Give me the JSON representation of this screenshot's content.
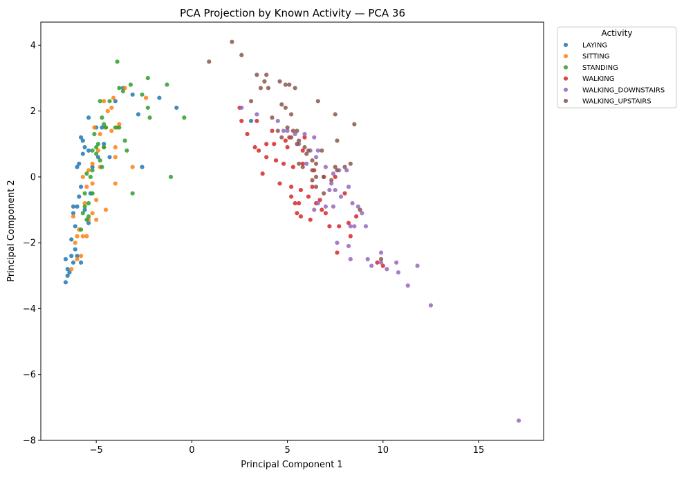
{
  "chart_data": {
    "type": "scatter",
    "title": "PCA Projection by Known Activity — PCA 36",
    "xlabel": "Principal Component 1",
    "ylabel": "Principal Component 2",
    "xlim": [
      -7.9,
      18.4
    ],
    "ylim": [
      -8,
      4.7
    ],
    "xticks": [
      -5,
      0,
      5,
      10,
      15
    ],
    "yticks": [
      -8,
      -6,
      -4,
      -2,
      0,
      2,
      4
    ],
    "tick_labels_x": [
      "−5",
      "0",
      "5",
      "10",
      "15"
    ],
    "tick_labels_y": [
      "−8",
      "−6",
      "−4",
      "−2",
      "0",
      "2",
      "4"
    ],
    "grid": false,
    "legend": {
      "title": "Activity",
      "placement": "outside-top-right"
    },
    "series": [
      {
        "name": "LAYING",
        "color": "#1f77b4",
        "points": [
          [
            -6.6,
            -3.2
          ],
          [
            -6.5,
            -3.0
          ],
          [
            -6.5,
            -2.8
          ],
          [
            -6.4,
            -2.9
          ],
          [
            -6.6,
            -2.5
          ],
          [
            -6.3,
            -2.4
          ],
          [
            -6.2,
            -2.6
          ],
          [
            -6.1,
            -2.2
          ],
          [
            -5.8,
            -2.6
          ],
          [
            -6.0,
            -2.4
          ],
          [
            -6.3,
            -1.9
          ],
          [
            -6.1,
            -1.5
          ],
          [
            -6.2,
            -1.1
          ],
          [
            -6.0,
            -0.9
          ],
          [
            -6.2,
            -0.9
          ],
          [
            -5.9,
            -0.6
          ],
          [
            -5.8,
            -0.3
          ],
          [
            -6.0,
            0.3
          ],
          [
            -5.9,
            0.4
          ],
          [
            -5.7,
            0.7
          ],
          [
            -5.6,
            0.9
          ],
          [
            -5.4,
            0.8
          ],
          [
            -5.7,
            1.1
          ],
          [
            -5.8,
            1.2
          ],
          [
            -5.4,
            1.8
          ],
          [
            -5.0,
            1.5
          ],
          [
            -4.7,
            1.5
          ],
          [
            -4.6,
            1.0
          ],
          [
            -4.3,
            0.6
          ],
          [
            -4.0,
            2.3
          ],
          [
            -3.6,
            2.7
          ],
          [
            -3.1,
            2.5
          ],
          [
            -2.8,
            1.9
          ],
          [
            -1.7,
            2.4
          ],
          [
            -0.8,
            2.1
          ],
          [
            -2.6,
            0.3
          ],
          [
            -5.4,
            -1.4
          ],
          [
            -5.2,
            0.3
          ],
          [
            -4.9,
            0.6
          ],
          [
            3.1,
            1.7
          ],
          [
            -5.6,
            -1.0
          ],
          [
            -5.3,
            -0.5
          ]
        ]
      },
      {
        "name": "SITTING",
        "color": "#ff7f0e",
        "points": [
          [
            -6.3,
            -2.8
          ],
          [
            -6.0,
            -2.5
          ],
          [
            -6.1,
            -2.0
          ],
          [
            -6.0,
            -1.8
          ],
          [
            -5.9,
            -1.6
          ],
          [
            -5.7,
            -1.8
          ],
          [
            -5.5,
            -1.8
          ],
          [
            -5.4,
            -1.3
          ],
          [
            -5.2,
            -1.1
          ],
          [
            -5.0,
            -1.3
          ],
          [
            -5.6,
            -0.8
          ],
          [
            -5.5,
            -0.3
          ],
          [
            -5.2,
            -0.2
          ],
          [
            -5.7,
            0.0
          ],
          [
            -5.4,
            0.2
          ],
          [
            -5.2,
            0.4
          ],
          [
            -5.0,
            -0.7
          ],
          [
            -4.8,
            0.3
          ],
          [
            -4.5,
            -1.0
          ],
          [
            -4.0,
            -0.2
          ],
          [
            -4.9,
            0.8
          ],
          [
            -4.6,
            0.9
          ],
          [
            -4.0,
            0.9
          ],
          [
            -4.8,
            1.3
          ],
          [
            -5.1,
            1.5
          ],
          [
            -4.5,
            1.5
          ],
          [
            -4.2,
            1.4
          ],
          [
            -3.9,
            1.5
          ],
          [
            -3.8,
            1.6
          ],
          [
            -4.4,
            2.0
          ],
          [
            -4.2,
            2.1
          ],
          [
            -4.6,
            2.3
          ],
          [
            -4.1,
            2.4
          ],
          [
            -3.5,
            2.7
          ],
          [
            -2.4,
            2.4
          ],
          [
            -3.1,
            0.3
          ],
          [
            -4.0,
            0.6
          ],
          [
            -5.8,
            -2.4
          ],
          [
            -6.2,
            -1.2
          ]
        ]
      },
      {
        "name": "STANDING",
        "color": "#2ca02c",
        "points": [
          [
            -5.8,
            -1.6
          ],
          [
            -5.5,
            -1.3
          ],
          [
            -5.6,
            -0.9
          ],
          [
            -5.4,
            -0.8
          ],
          [
            -5.2,
            -0.5
          ],
          [
            -5.6,
            -0.5
          ],
          [
            -5.5,
            0.1
          ],
          [
            -5.3,
            0.0
          ],
          [
            -5.2,
            0.2
          ],
          [
            -5.0,
            0.7
          ],
          [
            -5.2,
            0.8
          ],
          [
            -5.0,
            0.9
          ],
          [
            -4.8,
            0.5
          ],
          [
            -4.7,
            0.3
          ],
          [
            -4.9,
            1.0
          ],
          [
            -4.6,
            0.9
          ],
          [
            -4.5,
            1.5
          ],
          [
            -4.6,
            1.6
          ],
          [
            -4.7,
            1.8
          ],
          [
            -4.8,
            2.3
          ],
          [
            -4.3,
            2.3
          ],
          [
            -4.0,
            1.5
          ],
          [
            -3.8,
            1.5
          ],
          [
            -3.5,
            1.1
          ],
          [
            -3.4,
            0.8
          ],
          [
            -3.8,
            2.7
          ],
          [
            -3.6,
            2.6
          ],
          [
            -3.2,
            2.8
          ],
          [
            -2.6,
            2.5
          ],
          [
            -2.3,
            2.1
          ],
          [
            -2.2,
            1.8
          ],
          [
            -2.3,
            3.0
          ],
          [
            -1.3,
            2.8
          ],
          [
            -0.4,
            1.8
          ],
          [
            -3.9,
            3.5
          ],
          [
            -3.1,
            -0.5
          ],
          [
            -1.1,
            0.0
          ],
          [
            -5.1,
            1.3
          ],
          [
            -5.4,
            -1.2
          ],
          [
            -5.7,
            -1.1
          ]
        ]
      },
      {
        "name": "WALKING",
        "color": "#d62728",
        "points": [
          [
            2.5,
            2.1
          ],
          [
            2.6,
            1.7
          ],
          [
            2.9,
            1.3
          ],
          [
            3.4,
            1.7
          ],
          [
            3.5,
            0.8
          ],
          [
            3.7,
            0.1
          ],
          [
            3.9,
            0.6
          ],
          [
            3.9,
            1.0
          ],
          [
            4.3,
            1.0
          ],
          [
            4.4,
            0.5
          ],
          [
            4.6,
            -0.2
          ],
          [
            4.8,
            0.4
          ],
          [
            4.9,
            1.1
          ],
          [
            5.0,
            0.9
          ],
          [
            5.1,
            1.2
          ],
          [
            5.2,
            -0.3
          ],
          [
            5.3,
            0.3
          ],
          [
            5.2,
            -0.6
          ],
          [
            5.4,
            -0.8
          ],
          [
            5.5,
            -1.1
          ],
          [
            5.6,
            -0.8
          ],
          [
            5.7,
            -1.2
          ],
          [
            5.8,
            0.4
          ],
          [
            5.7,
            -0.4
          ],
          [
            5.8,
            0.8
          ],
          [
            5.9,
            1.2
          ],
          [
            6.1,
            -0.6
          ],
          [
            6.2,
            -1.3
          ],
          [
            6.3,
            -0.3
          ],
          [
            6.4,
            0.2
          ],
          [
            6.5,
            -0.8
          ],
          [
            6.7,
            -0.7
          ],
          [
            6.8,
            -1.0
          ],
          [
            7.0,
            -1.1
          ],
          [
            7.2,
            -1.5
          ],
          [
            7.5,
            0.0
          ],
          [
            7.7,
            -1.5
          ],
          [
            7.6,
            -2.3
          ],
          [
            8.0,
            -0.5
          ],
          [
            8.2,
            -1.4
          ],
          [
            8.3,
            -1.8
          ],
          [
            8.6,
            -1.2
          ],
          [
            9.7,
            -2.6
          ],
          [
            10.0,
            -2.7
          ],
          [
            6.9,
            0.0
          ],
          [
            4.2,
            1.4
          ],
          [
            3.3,
            0.9
          ]
        ]
      },
      {
        "name": "WALKING_DOWNSTAIRS",
        "color": "#9467bd",
        "points": [
          [
            2.6,
            2.1
          ],
          [
            3.4,
            1.9
          ],
          [
            4.5,
            1.7
          ],
          [
            4.8,
            1.4
          ],
          [
            5.0,
            1.4
          ],
          [
            5.4,
            1.3
          ],
          [
            5.6,
            1.0
          ],
          [
            5.9,
            1.3
          ],
          [
            6.4,
            1.2
          ],
          [
            6.6,
            0.8
          ],
          [
            6.0,
            0.4
          ],
          [
            6.2,
            0.8
          ],
          [
            6.5,
            0.6
          ],
          [
            7.0,
            0.3
          ],
          [
            7.4,
            0.1
          ],
          [
            7.7,
            0.2
          ],
          [
            8.1,
            0.2
          ],
          [
            7.3,
            -0.2
          ],
          [
            7.5,
            -0.4
          ],
          [
            7.8,
            -0.6
          ],
          [
            8.2,
            -0.3
          ],
          [
            8.4,
            -0.8
          ],
          [
            8.7,
            -0.9
          ],
          [
            8.9,
            -1.1
          ],
          [
            7.4,
            -0.9
          ],
          [
            7.0,
            -0.9
          ],
          [
            6.6,
            -0.8
          ],
          [
            6.4,
            -1.0
          ],
          [
            8.3,
            -1.5
          ],
          [
            8.5,
            -1.5
          ],
          [
            9.1,
            -1.5
          ],
          [
            7.6,
            -2.0
          ],
          [
            8.2,
            -2.1
          ],
          [
            7.2,
            -0.4
          ],
          [
            9.2,
            -2.5
          ],
          [
            9.9,
            -2.3
          ],
          [
            9.9,
            -2.6
          ],
          [
            10.2,
            -2.8
          ],
          [
            10.7,
            -2.6
          ],
          [
            10.8,
            -2.9
          ],
          [
            11.3,
            -3.3
          ],
          [
            11.8,
            -2.7
          ],
          [
            12.5,
            -3.9
          ],
          [
            17.1,
            -7.4
          ],
          [
            8.3,
            -2.5
          ],
          [
            9.4,
            -2.7
          ]
        ]
      },
      {
        "name": "WALKING_UPSTAIRS",
        "color": "#8c564b",
        "points": [
          [
            2.1,
            4.1
          ],
          [
            2.6,
            3.7
          ],
          [
            0.9,
            3.5
          ],
          [
            3.1,
            2.3
          ],
          [
            3.4,
            3.1
          ],
          [
            3.6,
            2.7
          ],
          [
            3.8,
            2.9
          ],
          [
            3.9,
            3.1
          ],
          [
            4.0,
            2.7
          ],
          [
            4.6,
            2.9
          ],
          [
            4.9,
            2.8
          ],
          [
            5.1,
            2.8
          ],
          [
            5.4,
            2.7
          ],
          [
            4.7,
            2.2
          ],
          [
            4.9,
            2.1
          ],
          [
            5.2,
            1.9
          ],
          [
            5.0,
            1.5
          ],
          [
            5.3,
            1.4
          ],
          [
            5.5,
            1.4
          ],
          [
            5.6,
            1.1
          ],
          [
            6.6,
            2.3
          ],
          [
            7.5,
            1.9
          ],
          [
            8.5,
            1.6
          ],
          [
            7.6,
            1.1
          ],
          [
            4.5,
            1.4
          ],
          [
            4.7,
            1.2
          ],
          [
            5.2,
            1.2
          ],
          [
            5.5,
            1.0
          ],
          [
            5.9,
            0.9
          ],
          [
            6.0,
            0.7
          ],
          [
            6.1,
            0.8
          ],
          [
            6.3,
            0.5
          ],
          [
            6.5,
            0.4
          ],
          [
            6.8,
            0.8
          ],
          [
            5.6,
            0.4
          ],
          [
            5.8,
            0.3
          ],
          [
            6.3,
            0.2
          ],
          [
            6.5,
            0.0
          ],
          [
            6.9,
            0.0
          ],
          [
            7.3,
            -0.1
          ],
          [
            7.6,
            0.2
          ],
          [
            8.0,
            0.3
          ],
          [
            8.3,
            0.4
          ],
          [
            6.9,
            -0.5
          ],
          [
            6.5,
            -0.3
          ],
          [
            8.8,
            -1.0
          ],
          [
            9.9,
            -2.5
          ],
          [
            4.2,
            1.8
          ],
          [
            6.3,
            -0.1
          ],
          [
            7.5,
            0.3
          ]
        ]
      }
    ]
  }
}
